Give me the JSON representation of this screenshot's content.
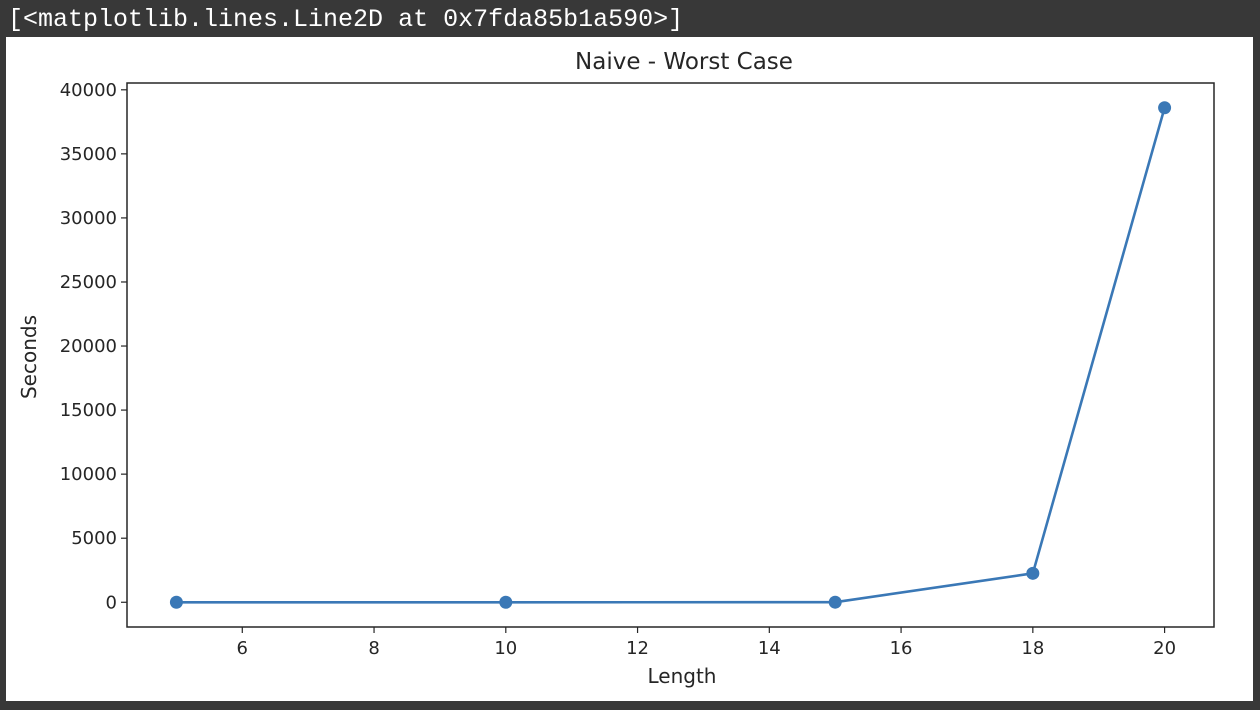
{
  "cell_output": {
    "repr_text": "[<matplotlib.lines.Line2D at 0x7fda85b1a590>]"
  },
  "chart_data": {
    "type": "line",
    "title": "Naive -  Worst Case",
    "xlabel": "Length",
    "ylabel": "Seconds",
    "xlim": [
      4.25,
      20.75
    ],
    "ylim": [
      -1930,
      40530
    ],
    "xticks": [
      6,
      8,
      10,
      12,
      14,
      16,
      18,
      20
    ],
    "yticks": [
      0,
      5000,
      10000,
      15000,
      20000,
      25000,
      30000,
      35000,
      40000
    ],
    "grid": false,
    "markers": "circle",
    "color": "#3a78b6",
    "series": [
      {
        "x": [
          5,
          10,
          15,
          18,
          20
        ],
        "y": [
          0,
          0,
          5,
          2260,
          38600
        ]
      }
    ]
  }
}
